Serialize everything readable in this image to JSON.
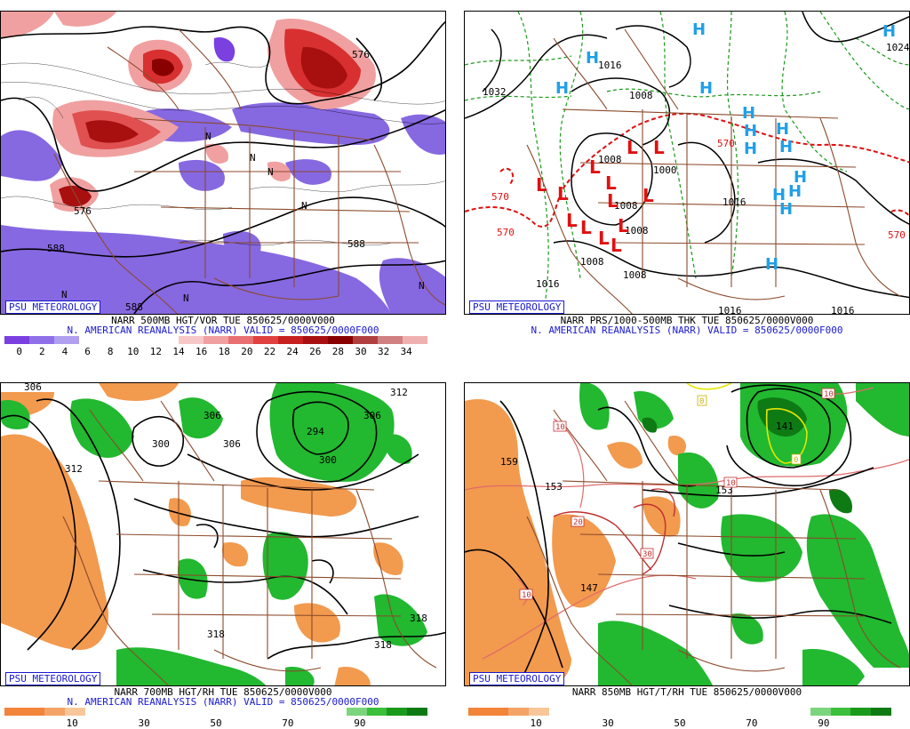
{
  "panels": [
    {
      "id": "p1",
      "badge": "PSU METEOROLOGY",
      "line1": "NARR 500MB HGT/VOR TUE 850625/0000V000",
      "line2": "N. AMERICAN REANALYSIS (NARR) VALID = 850625/0000F000",
      "colorbar_labels": [
        "0",
        "2",
        "4",
        "6",
        "8",
        "10",
        "12",
        "14",
        "16",
        "18",
        "20",
        "22",
        "24",
        "26",
        "28",
        "30",
        "32",
        "34"
      ],
      "contour_labels": [
        "588",
        "588",
        "588",
        "588",
        "588",
        "576",
        "576"
      ],
      "marker_labels": [
        "N",
        "N",
        "N",
        "N",
        "N",
        "N",
        "N"
      ]
    },
    {
      "id": "p2",
      "badge": "PSU METEOROLOGY",
      "line1": "NARR PRS/1000-500MB THK TUE 850625/0000V000",
      "line2": "N. AMERICAN REANALYSIS (NARR) VALID = 850625/0000F000",
      "contour_labels": [
        "1032",
        "1016",
        "1008",
        "1008",
        "1016",
        "1008",
        "1008",
        "1008",
        "1016",
        "1016",
        "1016",
        "1024",
        "1008",
        "1000"
      ],
      "thickness_labels": [
        "570",
        "570",
        "570",
        "570"
      ],
      "low_symbol": "L",
      "high_symbol": "H"
    },
    {
      "id": "p3",
      "badge": "PSU METEOROLOGY",
      "line1": "NARR 700MB HGT/RH TUE 850625/0000V000",
      "line2": "N. AMERICAN REANALYSIS (NARR) VALID = 850625/0000F000",
      "colorbar_labels": [
        "10",
        "30",
        "50",
        "70",
        "90"
      ],
      "contour_labels": [
        "306",
        "312",
        "300",
        "306",
        "306",
        "294",
        "306",
        "312",
        "300",
        "318",
        "318",
        "318"
      ]
    },
    {
      "id": "p4",
      "badge": "PSU METEOROLOGY",
      "line1": "NARR 850MB HGT/T/RH TUE 850625/0000V000",
      "colorbar_labels": [
        "10",
        "30",
        "50",
        "70",
        "90"
      ],
      "contour_labels": [
        "159",
        "153",
        "147",
        "153",
        "141"
      ],
      "temp_labels": [
        "10",
        "20",
        "30",
        "10",
        "10",
        "0",
        "0",
        "10"
      ]
    }
  ],
  "colors": {
    "vort_blue": "#7d5fe0",
    "vort_reds": [
      "#f4b4b4",
      "#ee8c8c",
      "#e45b5b",
      "#d23030",
      "#b81818",
      "#8e0808"
    ],
    "rh_green": "#22b830",
    "rh_dark_green": "#0e7a14",
    "rh_orange": "#f29a4e",
    "border_brown": "#8b4a2b",
    "label_blue": "#1a1ad0",
    "low_red": "#e01010",
    "high_blue": "#20a0e8"
  },
  "colorbar_p1": [
    "#7a40e0",
    "#9070e8",
    "#b0a0f0",
    "#ffffff",
    "#ffffff",
    "#ffffff",
    "#ffffff",
    "#f8c8c8",
    "#f0a0a0",
    "#e87070",
    "#e04040",
    "#c82020",
    "#a81010",
    "#880000",
    "#b04040",
    "#d08080",
    "#f0b0b0"
  ],
  "colorbar_rh": [
    "#f2853a",
    "#f2853a",
    "#f4a466",
    "#f7c79a",
    "#ffffff",
    "#ffffff",
    "#ffffff",
    "#ffffff",
    "#ffffff",
    "#ffffff",
    "#ffffff",
    "#ffffff",
    "#ffffff",
    "#ffffff",
    "#ffffff",
    "#ffffff",
    "#ffffff",
    "#7cd47c",
    "#3cbf3c",
    "#1a9a1a",
    "#0e7a14"
  ]
}
